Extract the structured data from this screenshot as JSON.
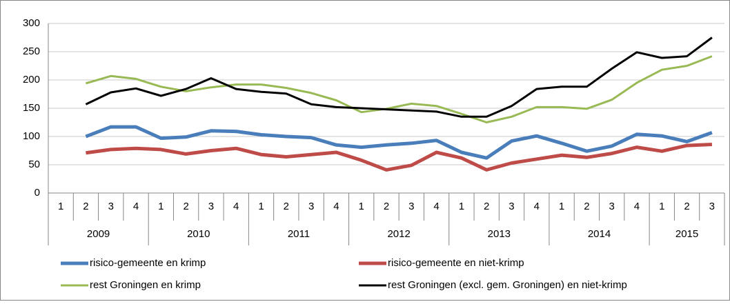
{
  "chart_data": {
    "type": "line",
    "categories": [
      "1",
      "2",
      "3",
      "4",
      "1",
      "2",
      "3",
      "4",
      "1",
      "2",
      "3",
      "4",
      "1",
      "2",
      "3",
      "4",
      "1",
      "2",
      "3",
      "4",
      "1",
      "2",
      "3",
      "4",
      "1",
      "2",
      "3"
    ],
    "year_labels": [
      "2009",
      "2010",
      "2011",
      "2012",
      "2013",
      "2014",
      "2015"
    ],
    "series": [
      {
        "name": "risico-gemeente en krimp",
        "color": "#4a7ebb",
        "values": [
          null,
          100,
          117,
          117,
          97,
          99,
          110,
          109,
          103,
          100,
          98,
          85,
          81,
          85,
          88,
          93,
          72,
          62,
          92,
          101,
          88,
          74,
          83,
          104,
          101,
          91,
          107
        ]
      },
      {
        "name": "risico-gemeente en niet-krimp",
        "color": "#be4b48",
        "values": [
          null,
          71,
          77,
          79,
          77,
          69,
          75,
          79,
          68,
          64,
          68,
          72,
          58,
          41,
          49,
          72,
          62,
          41,
          53,
          60,
          67,
          63,
          70,
          81,
          74,
          84,
          86
        ]
      },
      {
        "name": "rest Groningen en krimp",
        "color": "#98b954",
        "values": [
          null,
          194,
          207,
          202,
          188,
          180,
          187,
          192,
          192,
          186,
          177,
          164,
          143,
          149,
          158,
          154,
          140,
          125,
          135,
          152,
          152,
          149,
          165,
          195,
          218,
          225,
          242
        ]
      },
      {
        "name": "rest Groningen (excl. gem. Groningen) en niet-krimp",
        "color": "#000000",
        "values": [
          null,
          157,
          178,
          185,
          172,
          184,
          203,
          184,
          179,
          176,
          157,
          152,
          150,
          148,
          146,
          144,
          135,
          135,
          154,
          184,
          188,
          188,
          220,
          249,
          239,
          242,
          275
        ]
      }
    ],
    "ylim": [
      0,
      300
    ],
    "yticks": [
      0,
      50,
      100,
      150,
      200,
      250,
      300
    ],
    "grid": true
  }
}
